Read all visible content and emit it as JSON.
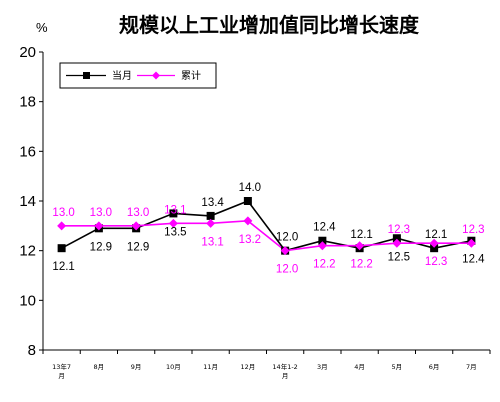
{
  "chart_data": {
    "type": "line",
    "title": "规模以上工业增加值同比增长速度",
    "ylabel": "%",
    "ylim": [
      8,
      20
    ],
    "yticks": [
      8,
      10,
      12,
      14,
      16,
      18,
      20
    ],
    "grid": false,
    "legend_position": "top-left",
    "categories": [
      "13年7月",
      "8月",
      "9月",
      "10月",
      "11月",
      "12月",
      "14年1-2月",
      "3月",
      "4月",
      "5月",
      "6月",
      "7月"
    ],
    "series": [
      {
        "name": "当月",
        "color": "#000000",
        "marker": "square",
        "values": [
          12.1,
          12.9,
          12.9,
          13.5,
          13.4,
          14.0,
          12.0,
          12.4,
          12.1,
          12.5,
          12.1,
          12.4
        ],
        "label_positions": [
          "below",
          "below",
          "below",
          "below",
          "above",
          "above",
          "above",
          "above",
          "above",
          "below",
          "above",
          "below"
        ]
      },
      {
        "name": "累计",
        "color": "#ff00ff",
        "marker": "diamond",
        "values": [
          13.0,
          13.0,
          13.0,
          13.1,
          13.1,
          13.2,
          12.0,
          12.2,
          12.2,
          12.3,
          12.3,
          12.3
        ],
        "label_positions": [
          "above",
          "above",
          "above",
          "above",
          "below",
          "below",
          "below",
          "below",
          "below",
          "above",
          "below",
          "above"
        ]
      }
    ]
  }
}
